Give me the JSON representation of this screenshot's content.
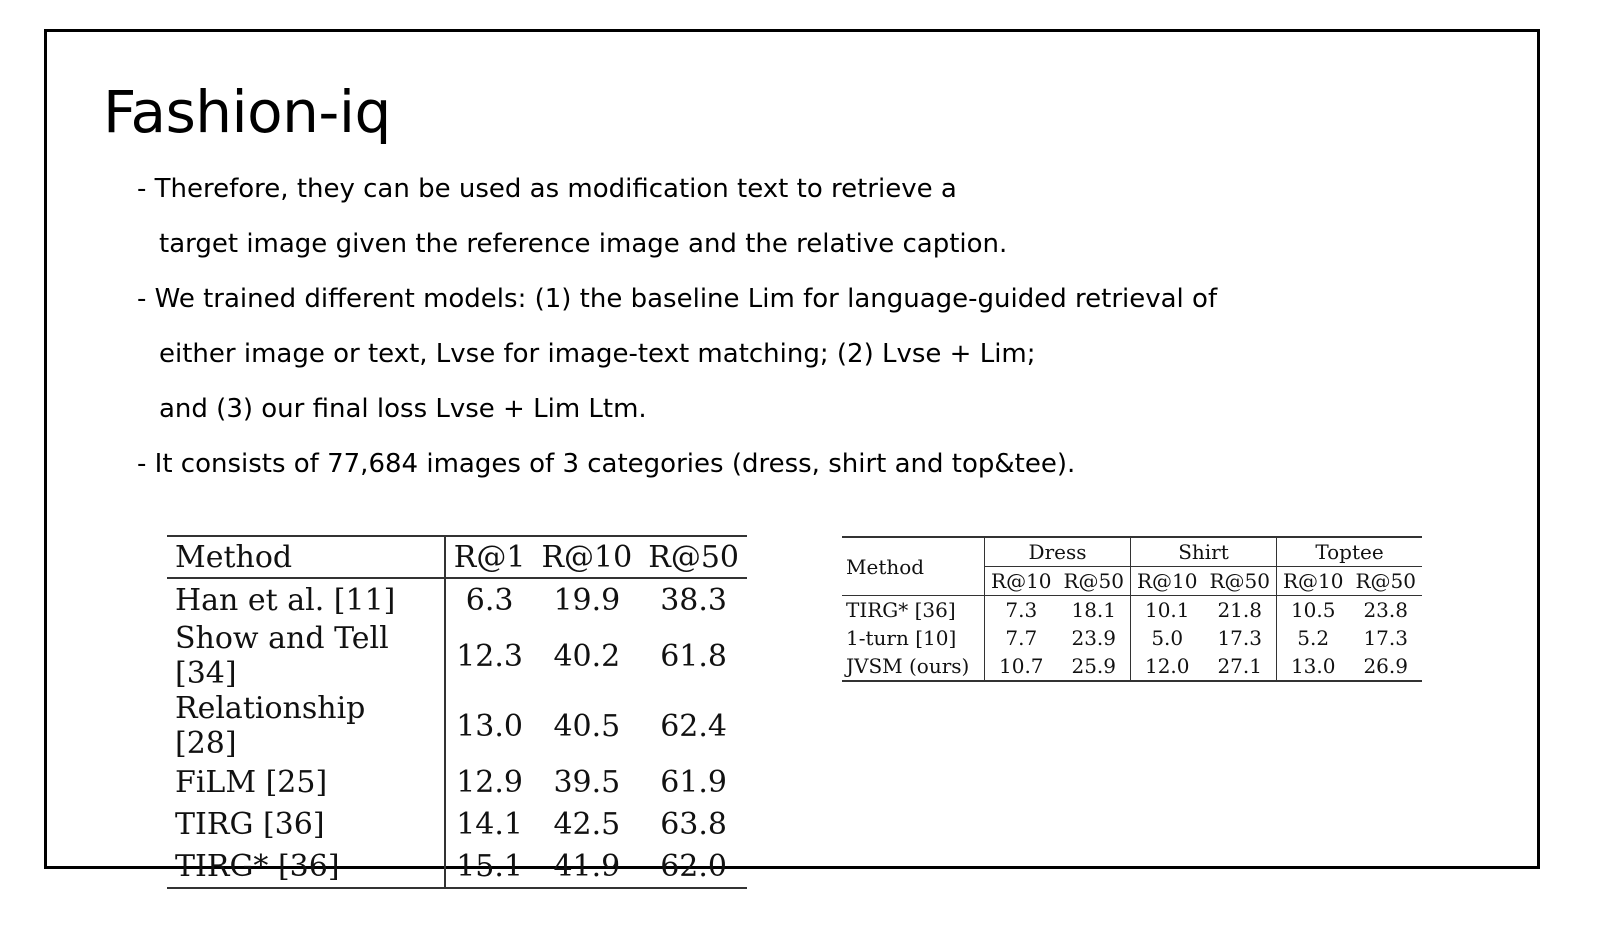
{
  "slide": {
    "title": "Fashion-iq",
    "bullets": [
      "- Therefore, they can be used as modification text to retrieve a",
      "target image given the reference image and the relative caption.",
      "- We trained different models: (1) the baseline Lim for language-guided retrieval of",
      "either image or text, Lvse for image-text matching; (2) Lvse + Lim;",
      "and (3) our final loss Lvse + Lim Ltm.",
      "- It consists of 77,684 images of 3 categories (dress, shirt and top&tee)."
    ]
  },
  "table1": {
    "headers": [
      "Method",
      "R@1",
      "R@10",
      "R@50"
    ],
    "rows": [
      [
        "Han et al. [11]",
        "6.3",
        "19.9",
        "38.3"
      ],
      [
        "Show and Tell [34]",
        "12.3",
        "40.2",
        "61.8"
      ],
      [
        "Relationship [28]",
        "13.0",
        "40.5",
        "62.4"
      ],
      [
        "FiLM [25]",
        "12.9",
        "39.5",
        "61.9"
      ],
      [
        "TIRG [36]",
        "14.1",
        "42.5",
        "63.8"
      ],
      [
        "TIRG* [36]",
        "15.1",
        "41.9",
        "62.0"
      ]
    ]
  },
  "table2": {
    "method_header": "Method",
    "groups": [
      "Dress",
      "Shirt",
      "Toptee"
    ],
    "subheaders": [
      "R@10",
      "R@50",
      "R@10",
      "R@50",
      "R@10",
      "R@50"
    ],
    "rows": [
      [
        "TIRG* [36]",
        "7.3",
        "18.1",
        "10.1",
        "21.8",
        "10.5",
        "23.8"
      ],
      [
        "1-turn [10]",
        "7.7",
        "23.9",
        "5.0",
        "17.3",
        "5.2",
        "17.3"
      ],
      [
        "JVSM (ours)",
        "10.7",
        "25.9",
        "12.0",
        "27.1",
        "13.0",
        "26.9"
      ]
    ]
  }
}
